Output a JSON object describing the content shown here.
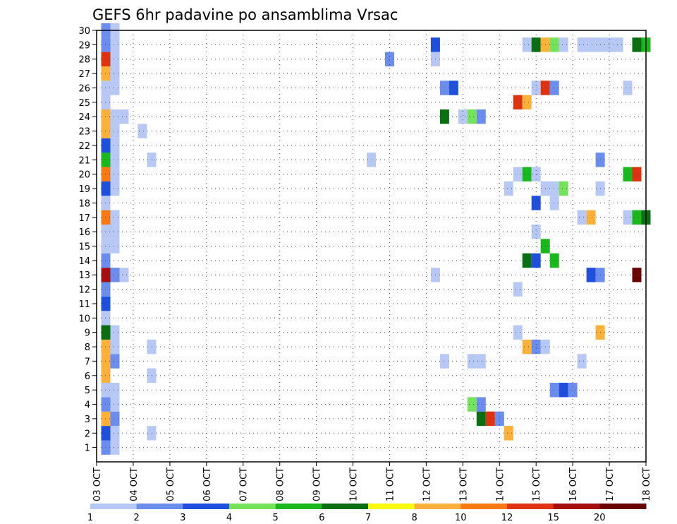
{
  "chart_data": {
    "type": "heatmap",
    "title": "GEFS 6hr padavine po ansamblima Vrsac",
    "xlabel": "",
    "ylabel": "",
    "x_ticks": [
      "03 OCT",
      "04 OCT",
      "05 OCT",
      "06 OCT",
      "07 OCT",
      "08 OCT",
      "09 OCT",
      "10 OCT",
      "11 OCT",
      "12 OCT",
      "13 OCT",
      "14 OCT",
      "15 OCT",
      "16 OCT",
      "17 OCT",
      "18 OCT"
    ],
    "y_ticks": [
      "1",
      "2",
      "3",
      "4",
      "5",
      "6",
      "7",
      "8",
      "9",
      "10",
      "11",
      "12",
      "13",
      "14",
      "15",
      "16",
      "17",
      "18",
      "19",
      "20",
      "21",
      "22",
      "23",
      "24",
      "25",
      "26",
      "27",
      "28",
      "29",
      "30"
    ],
    "xlim_days": [
      0,
      15
    ],
    "ylim": [
      0,
      30
    ],
    "step_days": 0.25,
    "grid": true,
    "colorbar": {
      "labels": [
        "1",
        "2",
        "3",
        "4",
        "5",
        "6",
        "7",
        "8",
        "10",
        "12",
        "15",
        "20"
      ],
      "colors": [
        "#b7c8f5",
        "#6b8ded",
        "#1f4fdd",
        "#74e35a",
        "#19b81c",
        "#0a6e12",
        "#fafa0e",
        "#fbb03a",
        "#f97a12",
        "#dd3310",
        "#a50f0f",
        "#6b0000"
      ]
    },
    "cells": [
      {
        "d": 0.25,
        "m": 0,
        "v": 2
      },
      {
        "d": 0.5,
        "m": 0,
        "v": 1
      },
      {
        "d": 0.25,
        "m": 1,
        "v": 3
      },
      {
        "d": 0.5,
        "m": 1,
        "v": 1
      },
      {
        "d": 1.5,
        "m": 1,
        "v": 1
      },
      {
        "d": 11.25,
        "m": 1,
        "v": 8
      },
      {
        "d": 0.25,
        "m": 2,
        "v": 9
      },
      {
        "d": 0.5,
        "m": 2,
        "v": 2
      },
      {
        "d": 10.5,
        "m": 2,
        "v": 6
      },
      {
        "d": 10.75,
        "m": 2,
        "v": 12
      },
      {
        "d": 11.0,
        "m": 2,
        "v": 2
      },
      {
        "d": 0.25,
        "m": 3,
        "v": 2
      },
      {
        "d": 0.5,
        "m": 3,
        "v": 1
      },
      {
        "d": 10.25,
        "m": 3,
        "v": 4
      },
      {
        "d": 10.5,
        "m": 3,
        "v": 2
      },
      {
        "d": 0.25,
        "m": 4,
        "v": 1
      },
      {
        "d": 0.5,
        "m": 4,
        "v": 1
      },
      {
        "d": 12.5,
        "m": 4,
        "v": 2
      },
      {
        "d": 12.75,
        "m": 4,
        "v": 3
      },
      {
        "d": 13.0,
        "m": 4,
        "v": 2
      },
      {
        "d": 0.25,
        "m": 5,
        "v": 9
      },
      {
        "d": 1.5,
        "m": 5,
        "v": 1
      },
      {
        "d": 0.25,
        "m": 6,
        "v": 8
      },
      {
        "d": 0.5,
        "m": 6,
        "v": 2
      },
      {
        "d": 9.5,
        "m": 6,
        "v": 1
      },
      {
        "d": 10.25,
        "m": 6,
        "v": 1
      },
      {
        "d": 10.5,
        "m": 6,
        "v": 1
      },
      {
        "d": 13.25,
        "m": 6,
        "v": 1
      },
      {
        "d": 0.25,
        "m": 7,
        "v": 9
      },
      {
        "d": 0.5,
        "m": 7,
        "v": 1
      },
      {
        "d": 1.5,
        "m": 7,
        "v": 1
      },
      {
        "d": 11.75,
        "m": 7,
        "v": 8
      },
      {
        "d": 12.0,
        "m": 7,
        "v": 2
      },
      {
        "d": 12.25,
        "m": 7,
        "v": 1
      },
      {
        "d": 0.25,
        "m": 8,
        "v": 6
      },
      {
        "d": 0.5,
        "m": 8,
        "v": 1
      },
      {
        "d": 11.5,
        "m": 8,
        "v": 1
      },
      {
        "d": 13.75,
        "m": 8,
        "v": 8
      },
      {
        "d": 0.25,
        "m": 9,
        "v": 1
      },
      {
        "d": 0.25,
        "m": 10,
        "v": 3
      },
      {
        "d": 0.25,
        "m": 11,
        "v": 2
      },
      {
        "d": 11.5,
        "m": 11,
        "v": 1
      },
      {
        "d": 0.25,
        "m": 12,
        "v": 15
      },
      {
        "d": 0.5,
        "m": 12,
        "v": 2
      },
      {
        "d": 0.75,
        "m": 12,
        "v": 1
      },
      {
        "d": 9.25,
        "m": 12,
        "v": 1
      },
      {
        "d": 13.5,
        "m": 12,
        "v": 3
      },
      {
        "d": 13.75,
        "m": 12,
        "v": 2
      },
      {
        "d": 14.75,
        "m": 12,
        "v": 20
      },
      {
        "d": 0.25,
        "m": 13,
        "v": 2
      },
      {
        "d": 11.75,
        "m": 13,
        "v": 6
      },
      {
        "d": 12.0,
        "m": 13,
        "v": 3
      },
      {
        "d": 12.5,
        "m": 13,
        "v": 5
      },
      {
        "d": 0.25,
        "m": 14,
        "v": 1
      },
      {
        "d": 0.5,
        "m": 14,
        "v": 1
      },
      {
        "d": 12.25,
        "m": 14,
        "v": 5
      },
      {
        "d": 0.25,
        "m": 15,
        "v": 1
      },
      {
        "d": 0.5,
        "m": 15,
        "v": 1
      },
      {
        "d": 12.0,
        "m": 15,
        "v": 1
      },
      {
        "d": 0.25,
        "m": 16,
        "v": 10
      },
      {
        "d": 0.5,
        "m": 16,
        "v": 1
      },
      {
        "d": 13.25,
        "m": 16,
        "v": 1
      },
      {
        "d": 13.5,
        "m": 16,
        "v": 9
      },
      {
        "d": 14.5,
        "m": 16,
        "v": 1
      },
      {
        "d": 14.75,
        "m": 16,
        "v": 5
      },
      {
        "d": 15.0,
        "m": 16,
        "v": 6
      },
      {
        "d": 0.25,
        "m": 17,
        "v": 1
      },
      {
        "d": 12.0,
        "m": 17,
        "v": 3
      },
      {
        "d": 12.5,
        "m": 17,
        "v": 1
      },
      {
        "d": 0.25,
        "m": 18,
        "v": 3
      },
      {
        "d": 0.5,
        "m": 18,
        "v": 1
      },
      {
        "d": 11.25,
        "m": 18,
        "v": 1
      },
      {
        "d": 12.25,
        "m": 18,
        "v": 1
      },
      {
        "d": 12.5,
        "m": 18,
        "v": 1
      },
      {
        "d": 12.75,
        "m": 18,
        "v": 4
      },
      {
        "d": 13.75,
        "m": 18,
        "v": 1
      },
      {
        "d": 0.25,
        "m": 19,
        "v": 10
      },
      {
        "d": 0.5,
        "m": 19,
        "v": 1
      },
      {
        "d": 11.5,
        "m": 19,
        "v": 1
      },
      {
        "d": 11.75,
        "m": 19,
        "v": 5
      },
      {
        "d": 12.0,
        "m": 19,
        "v": 1
      },
      {
        "d": 14.5,
        "m": 19,
        "v": 5
      },
      {
        "d": 14.75,
        "m": 19,
        "v": 12
      },
      {
        "d": 0.25,
        "m": 20,
        "v": 5
      },
      {
        "d": 0.5,
        "m": 20,
        "v": 1
      },
      {
        "d": 1.5,
        "m": 20,
        "v": 1
      },
      {
        "d": 7.5,
        "m": 20,
        "v": 1
      },
      {
        "d": 13.75,
        "m": 20,
        "v": 2
      },
      {
        "d": 0.25,
        "m": 21,
        "v": 3
      },
      {
        "d": 0.5,
        "m": 21,
        "v": 1
      },
      {
        "d": 0.25,
        "m": 22,
        "v": 9
      },
      {
        "d": 0.5,
        "m": 22,
        "v": 1
      },
      {
        "d": 1.25,
        "m": 22,
        "v": 1
      },
      {
        "d": 0.25,
        "m": 23,
        "v": 8
      },
      {
        "d": 0.5,
        "m": 23,
        "v": 1
      },
      {
        "d": 0.75,
        "m": 23,
        "v": 1
      },
      {
        "d": 9.5,
        "m": 23,
        "v": 6
      },
      {
        "d": 10.0,
        "m": 23,
        "v": 1
      },
      {
        "d": 10.25,
        "m": 23,
        "v": 4
      },
      {
        "d": 10.5,
        "m": 23,
        "v": 2
      },
      {
        "d": 0.25,
        "m": 24,
        "v": 1
      },
      {
        "d": 11.5,
        "m": 24,
        "v": 12
      },
      {
        "d": 11.75,
        "m": 24,
        "v": 8
      },
      {
        "d": 0.25,
        "m": 25,
        "v": 1
      },
      {
        "d": 0.5,
        "m": 25,
        "v": 1
      },
      {
        "d": 9.5,
        "m": 25,
        "v": 2
      },
      {
        "d": 9.75,
        "m": 25,
        "v": 3
      },
      {
        "d": 12.0,
        "m": 25,
        "v": 1
      },
      {
        "d": 12.25,
        "m": 25,
        "v": 12
      },
      {
        "d": 12.5,
        "m": 25,
        "v": 2
      },
      {
        "d": 14.5,
        "m": 25,
        "v": 1
      },
      {
        "d": 0.25,
        "m": 26,
        "v": 8
      },
      {
        "d": 0.5,
        "m": 26,
        "v": 1
      },
      {
        "d": 0.25,
        "m": 27,
        "v": 12
      },
      {
        "d": 0.5,
        "m": 27,
        "v": 1
      },
      {
        "d": 8.0,
        "m": 27,
        "v": 2
      },
      {
        "d": 9.25,
        "m": 27,
        "v": 1
      },
      {
        "d": 0.25,
        "m": 28,
        "v": 2
      },
      {
        "d": 0.5,
        "m": 28,
        "v": 1
      },
      {
        "d": 9.25,
        "m": 28,
        "v": 3
      },
      {
        "d": 11.75,
        "m": 28,
        "v": 1
      },
      {
        "d": 12.0,
        "m": 28,
        "v": 6
      },
      {
        "d": 12.25,
        "m": 28,
        "v": 8
      },
      {
        "d": 12.5,
        "m": 28,
        "v": 4
      },
      {
        "d": 12.75,
        "m": 28,
        "v": 1
      },
      {
        "d": 13.25,
        "m": 28,
        "v": 1
      },
      {
        "d": 13.5,
        "m": 28,
        "v": 1
      },
      {
        "d": 13.75,
        "m": 28,
        "v": 1
      },
      {
        "d": 14.0,
        "m": 28,
        "v": 1
      },
      {
        "d": 14.25,
        "m": 28,
        "v": 1
      },
      {
        "d": 14.75,
        "m": 28,
        "v": 6
      },
      {
        "d": 15.0,
        "m": 28,
        "v": 5
      },
      {
        "d": 0.25,
        "m": 29,
        "v": 2
      },
      {
        "d": 0.5,
        "m": 29,
        "v": 1
      }
    ]
  }
}
